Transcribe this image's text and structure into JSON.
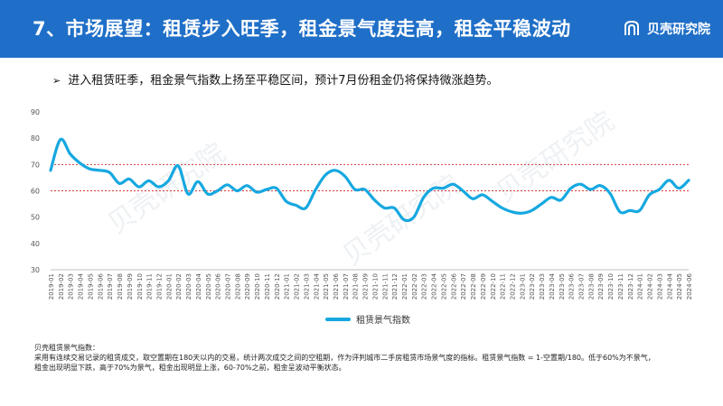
{
  "header": {
    "title": "7、市场展望：租赁步入旺季，租金景气度走高，租金平稳波动",
    "brand_name": "贝壳研究院",
    "colors": {
      "bar": "#1f6fc8",
      "text": "#ffffff"
    }
  },
  "bullet": {
    "icon": "arrow-bullet-icon",
    "text": "进入租赁旺季，租金景气指数上扬至平稳区间，预计7月份租金仍将保持微涨趋势。"
  },
  "watermark": {
    "text": "贝壳研究院"
  },
  "legend": {
    "label": "租赁景气指数"
  },
  "footnote": {
    "title": "贝壳租赁景气指数：",
    "line1": "采用有连续交易记录的租赁成交，取空置期在180天以内的交易，统计两次成交之间的空租期，作为评判城市二手房租赁市场景气度的指标。租赁景气指数 = 1-空置期/180。低于60%为不景气，",
    "line2": "租金出现明显下跌，高于70%为景气，租金出现明显上涨，60-70%之前，租金呈波动平衡状态。"
  },
  "chart_data": {
    "type": "line",
    "title": "",
    "xlabel": "",
    "ylabel": "",
    "ylim": [
      30,
      90
    ],
    "yticks": [
      30,
      40,
      50,
      60,
      70,
      80,
      90
    ],
    "grid": false,
    "reference_lines": [
      60,
      70
    ],
    "legend_position": "bottom",
    "line_color": "#16a8e0",
    "reference_color": "#d43a3a",
    "x": [
      "2019-01",
      "2019-02",
      "2019-03",
      "2019-04",
      "2019-05",
      "2019-06",
      "2019-07",
      "2019-08",
      "2019-09",
      "2019-10",
      "2019-11",
      "2019-12",
      "2020-01",
      "2020-02",
      "2020-03",
      "2020-04",
      "2020-05",
      "2020-06",
      "2020-07",
      "2020-08",
      "2020-09",
      "2020-10",
      "2020-11",
      "2020-12",
      "2021-01",
      "2021-02",
      "2021-03",
      "2021-04",
      "2021-05",
      "2021-06",
      "2021-07",
      "2021-08",
      "2021-09",
      "2021-10",
      "2021-11",
      "2021-12",
      "2022-01",
      "2022-02",
      "2022-03",
      "2022-04",
      "2022-05",
      "2022-06",
      "2022-07",
      "2022-08",
      "2022-09",
      "2022-10",
      "2022-11",
      "2022-12",
      "2023-01",
      "2023-02",
      "2023-03",
      "2023-04",
      "2023-05",
      "2023-06",
      "2023-07",
      "2023-08",
      "2023-09",
      "2023-10",
      "2023-11",
      "2023-12",
      "2024-01",
      "2024-02",
      "2024-03",
      "2024-04",
      "2024-05",
      "2024-06"
    ],
    "series": [
      {
        "name": "租赁景气指数",
        "values": [
          67.8,
          79.5,
          74.0,
          70.5,
          68.3,
          67.8,
          67.0,
          62.8,
          64.5,
          61.5,
          63.8,
          61.5,
          63.8,
          69.5,
          58.8,
          63.5,
          58.8,
          60.0,
          62.3,
          60.0,
          62.0,
          59.5,
          60.5,
          61.0,
          56.0,
          54.5,
          53.5,
          60.5,
          66.0,
          67.8,
          65.5,
          60.5,
          60.5,
          56.5,
          53.5,
          53.5,
          49.0,
          50.0,
          57.5,
          61.0,
          61.0,
          62.5,
          60.0,
          57.0,
          58.5,
          56.0,
          53.5,
          52.0,
          51.5,
          52.5,
          55.0,
          57.5,
          56.5,
          61.0,
          62.5,
          60.5,
          62.0,
          59.0,
          52.0,
          52.5,
          52.5,
          58.5,
          60.5,
          64.0,
          61.0,
          64.0
        ]
      }
    ]
  }
}
